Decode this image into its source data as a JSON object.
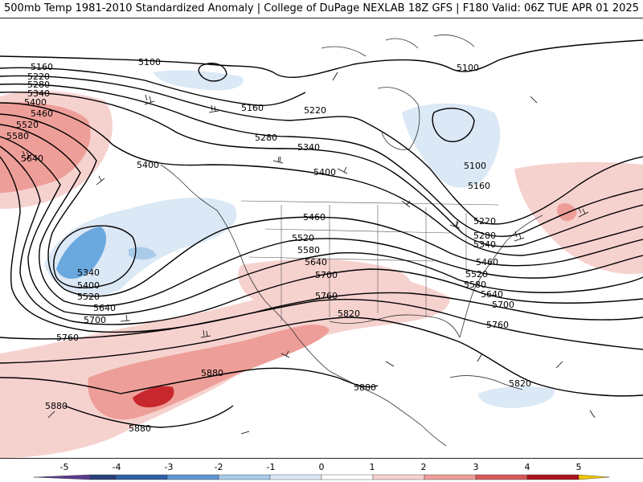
{
  "header": {
    "title_left": "500mb Temp 1981-2010 Standardized Anomaly | College of DuPage NEXLAB",
    "title_right": "18Z GFS | F180 Valid: 06Z TUE APR 01 2025"
  },
  "map": {
    "contour_labels": [
      "5100",
      "5160",
      "5220",
      "5280",
      "5340",
      "5400",
      "5460",
      "5520",
      "5580",
      "5640",
      "5700",
      "5760",
      "5820",
      "5880"
    ],
    "colors": {
      "contour": "#000000",
      "coast": "#333333",
      "anom_pos_1": "#f6d2cf",
      "anom_pos_2": "#ee9e98",
      "anom_pos_3": "#e06c66",
      "anom_pos_4": "#c8282d",
      "anom_neg_1": "#dbe8f5",
      "anom_neg_2": "#a9cbea",
      "anom_neg_3": "#6aa8de"
    }
  },
  "colorbar": {
    "ticks": [
      "-5",
      "-4",
      "-3",
      "-2",
      "-1",
      "0",
      "1",
      "2",
      "3",
      "4",
      "5"
    ],
    "bins": [
      {
        "range": "-5 to -4.5",
        "color": "#5b3a8e"
      },
      {
        "range": "-4.5 to -4",
        "color": "#27407a"
      },
      {
        "range": "-4 to -3",
        "color": "#2f5fa6"
      },
      {
        "range": "-3 to -2",
        "color": "#5f97d3"
      },
      {
        "range": "-2 to -1",
        "color": "#a9cbea"
      },
      {
        "range": "-1 to 0",
        "color": "#dbe8f5"
      },
      {
        "range": "0 to 1",
        "color": "#ffffff"
      },
      {
        "range": "1 to 2",
        "color": "#f6d2cf"
      },
      {
        "range": "2 to 3",
        "color": "#ee9e98"
      },
      {
        "range": "3 to 4",
        "color": "#d85a57"
      },
      {
        "range": "4 to 5",
        "color": "#a8131c"
      },
      {
        "range": "5+",
        "color": "#f2c400"
      }
    ]
  }
}
